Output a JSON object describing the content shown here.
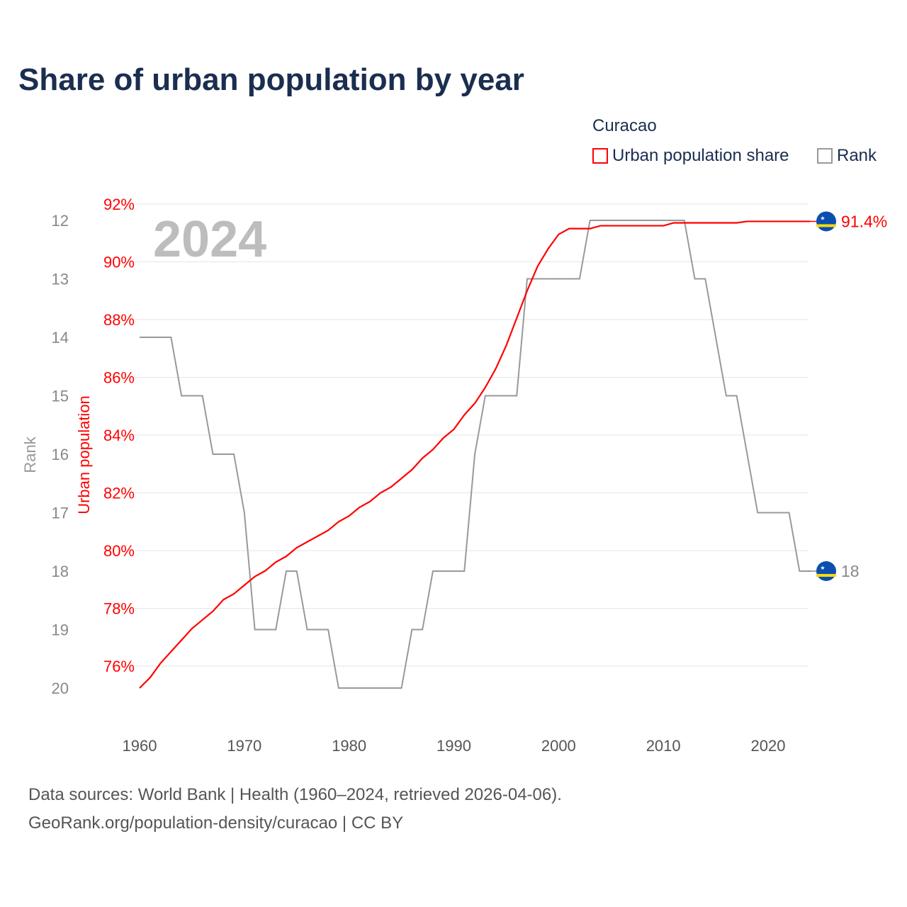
{
  "title": "Share of urban population by year",
  "legend": {
    "title": "Curacao",
    "items": [
      {
        "label": "Urban population share",
        "color": "#ff0000"
      },
      {
        "label": "Rank",
        "color": "#999999"
      }
    ]
  },
  "year_watermark": "2024",
  "footer": {
    "line1": "Data sources: World Bank | Health (1960–2024, retrieved 2026-04-06).",
    "line2": "GeoRank.org/population-density/curacao | CC BY"
  },
  "end_labels": {
    "urban": "91.4%",
    "rank": "18"
  },
  "chart_data": {
    "type": "line",
    "title": "Share of urban population by year",
    "xlabel": "",
    "ylabel": "Urban population",
    "y2label": "Rank",
    "xlim": [
      1960,
      2024
    ],
    "ylim": [
      75.2,
      92.6
    ],
    "y2lim": [
      20,
      12
    ],
    "xticks": [
      1960,
      1970,
      1980,
      1990,
      2000,
      2010,
      2020
    ],
    "yticks": [
      76,
      78,
      80,
      82,
      84,
      86,
      88,
      90,
      92
    ],
    "ytick_labels": [
      "76%",
      "78%",
      "80%",
      "82%",
      "84%",
      "86%",
      "88%",
      "90%",
      "92%"
    ],
    "y2ticks": [
      12,
      13,
      14,
      15,
      16,
      17,
      18,
      19,
      20
    ],
    "x": [
      1960,
      1961,
      1962,
      1963,
      1964,
      1965,
      1966,
      1967,
      1968,
      1969,
      1970,
      1971,
      1972,
      1973,
      1974,
      1975,
      1976,
      1977,
      1978,
      1979,
      1980,
      1981,
      1982,
      1983,
      1984,
      1985,
      1986,
      1987,
      1988,
      1989,
      1990,
      1991,
      1992,
      1993,
      1994,
      1995,
      1996,
      1997,
      1998,
      1999,
      2000,
      2001,
      2002,
      2003,
      2004,
      2005,
      2006,
      2007,
      2008,
      2009,
      2010,
      2011,
      2012,
      2013,
      2014,
      2015,
      2016,
      2017,
      2018,
      2019,
      2020,
      2021,
      2022,
      2023,
      2024
    ],
    "series": [
      {
        "name": "Urban population share",
        "color": "#ff0000",
        "axis": "left",
        "values": [
          75.24,
          75.6,
          76.1,
          76.5,
          76.9,
          77.3,
          77.6,
          77.9,
          78.3,
          78.5,
          78.8,
          79.1,
          79.3,
          79.6,
          79.8,
          80.1,
          80.3,
          80.5,
          80.7,
          81.0,
          81.2,
          81.5,
          81.7,
          82.0,
          82.2,
          82.5,
          82.8,
          83.2,
          83.5,
          83.9,
          84.2,
          84.7,
          85.1,
          85.65,
          86.3,
          87.1,
          88.05,
          89.0,
          89.85,
          90.45,
          90.95,
          91.15,
          91.15,
          91.15,
          91.25,
          91.25,
          91.25,
          91.25,
          91.25,
          91.25,
          91.25,
          91.35,
          91.35,
          91.35,
          91.35,
          91.35,
          91.35,
          91.35,
          91.4,
          91.4,
          91.4,
          91.4,
          91.4,
          91.4,
          91.4
        ]
      },
      {
        "name": "Rank",
        "color": "#999999",
        "axis": "right",
        "values": [
          14,
          14,
          14,
          14,
          15,
          15,
          15,
          16,
          16,
          16,
          17,
          19,
          19,
          19,
          18,
          18,
          19,
          19,
          19,
          20,
          20,
          20,
          20,
          20,
          20,
          20,
          19,
          19,
          18,
          18,
          18,
          18,
          16,
          15,
          15,
          15,
          15,
          13,
          13,
          13,
          13,
          13,
          13,
          12,
          12,
          12,
          12,
          12,
          12,
          12,
          12,
          12,
          12,
          13,
          13,
          14,
          15,
          15,
          16,
          17,
          17,
          17,
          17,
          18,
          18
        ]
      }
    ],
    "grid": true,
    "legend_position": "top-right"
  }
}
